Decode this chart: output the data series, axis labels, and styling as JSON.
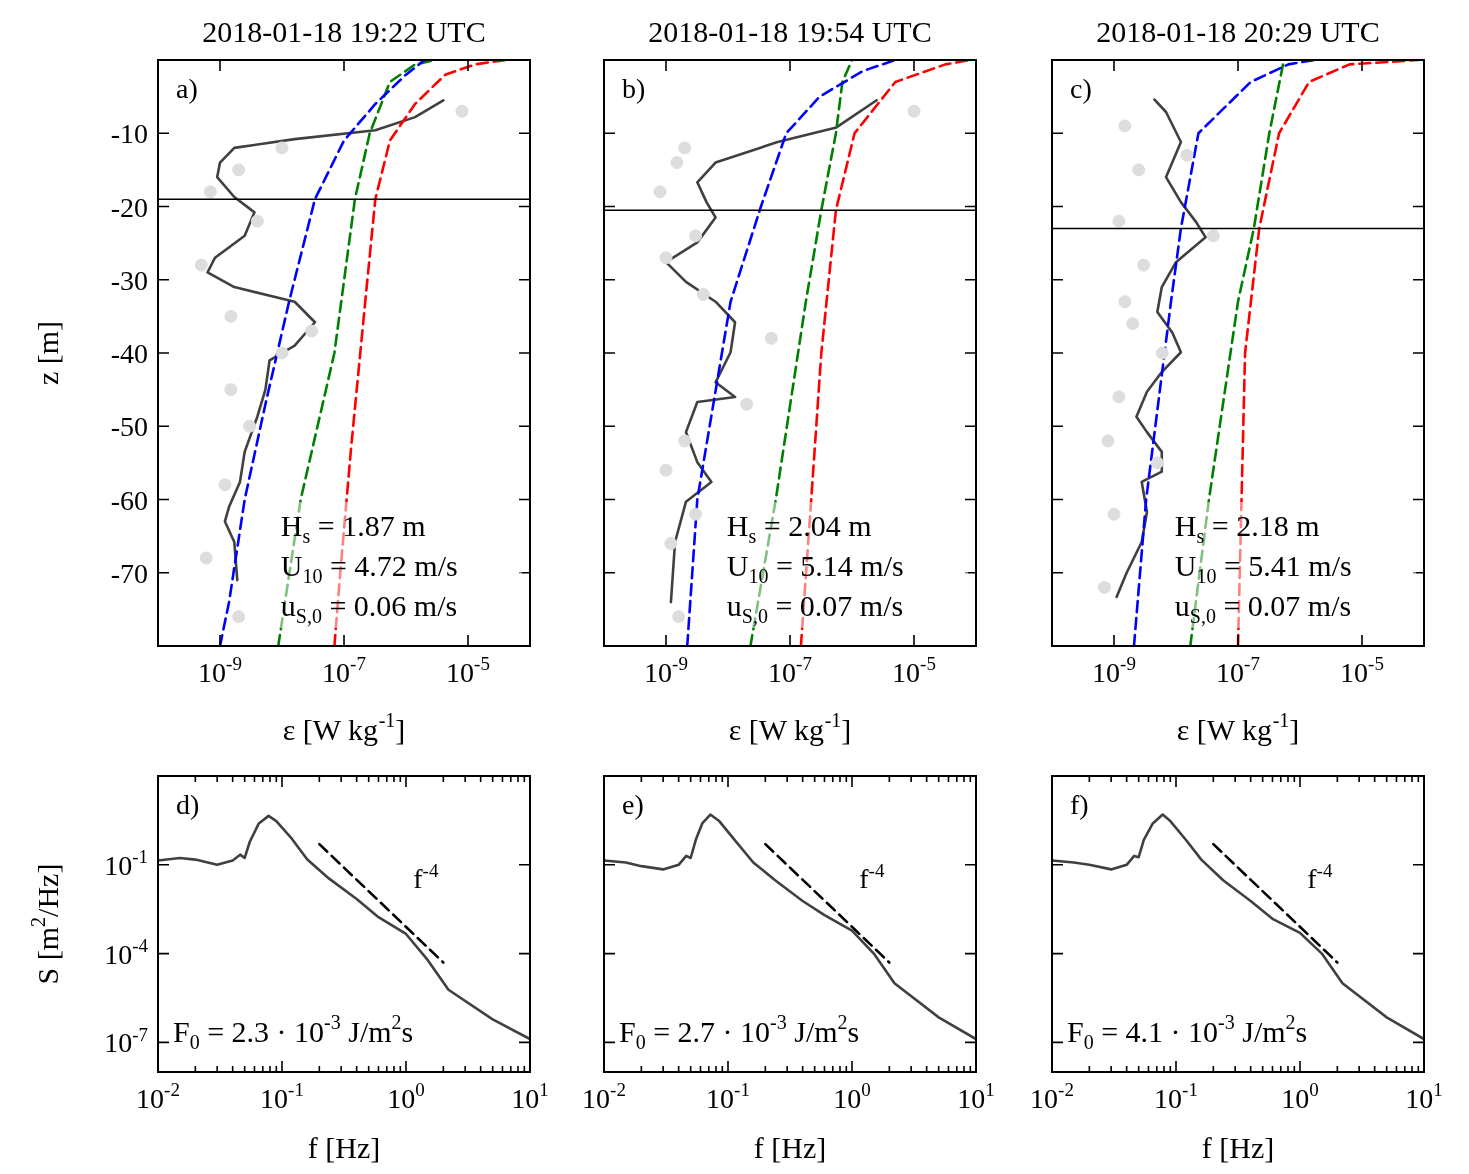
{
  "chart_data": [
    {
      "type": "line",
      "title": "2018-01-18 19:22 UTC",
      "xlabel": "ε [W kg$^{-1}$]",
      "ylabel": "z [m]",
      "log": "x",
      "xlim": [
        1e-10,
        0.0001
      ],
      "ylim": [
        -80,
        0
      ],
      "xticks": [
        {
          "value": 1e-09,
          "label": "10$^{-9}$"
        },
        {
          "value": 1e-07,
          "label": "10$^{-7}$"
        },
        {
          "value": 1e-05,
          "label": "10$^{-5}$"
        }
      ],
      "yticks": [
        -70,
        -60,
        -50,
        -40,
        -30,
        -20,
        -10
      ],
      "grid": false,
      "legend": false,
      "ref_lines": [
        {
          "axis": "y",
          "value": -19,
          "color": "#000000"
        }
      ],
      "annotations": [
        "a)",
        "H$_{s}$ = 1.87 m",
        "U$_{10}$ = 4.72 m/s",
        "u$_{S,0}$ = 0.06 m/s"
      ],
      "series": [
        {
          "type": "scatter",
          "color": "#dddddd",
          "marker": "circle",
          "x": [
            2e-09,
            7e-10,
            4e-09,
            5e-10,
            1.5e-09,
            1e-08,
            3e-09,
            1.2e-09,
            6e-10,
            2e-09,
            8e-06,
            1e-08,
            3e-08,
            1.5e-09
          ],
          "values": [
            -15,
            -18,
            -22,
            -28,
            -35,
            -40,
            -50,
            -58,
            -68,
            -76,
            -7,
            -12,
            -37,
            -45
          ]
        },
        {
          "type": "line",
          "color": "#0000ff",
          "line_style": "dashed",
          "x": [
            1e-09,
            1.4e-09,
            2.5e-09,
            5.4e-09,
            1.3e-08,
            3.4e-08,
            1e-07,
            3.2e-07,
            1e-06,
            2e-06
          ],
          "values": [
            -80,
            -74,
            -60,
            -47,
            -33,
            -19,
            -11,
            -6,
            -2,
            0
          ]
        },
        {
          "type": "line",
          "color": "#008000",
          "line_style": "dashed",
          "x": [
            8.7e-09,
            2e-08,
            7e-08,
            1.5e-07,
            2.6e-07,
            5.5e-07,
            1.4e-06,
            3e-06
          ],
          "values": [
            -80,
            -60,
            -40,
            -19,
            -10,
            -3,
            -0.6,
            0
          ]
        },
        {
          "type": "line",
          "color": "#ff0000",
          "line_style": "dashed",
          "x": [
            7e-08,
            8.7e-08,
            1.3e-07,
            2.2e-07,
            3.2e-07,
            5.5e-07,
            1.4e-06,
            4.3e-06,
            1.3e-05,
            4e-05
          ],
          "values": [
            -80,
            -70,
            -53,
            -33,
            -19,
            -11,
            -6,
            -2,
            -0.6,
            0
          ]
        },
        {
          "type": "line",
          "color": "#404040",
          "line_style": "solid",
          "x": [
            4e-06,
            1.4e-06,
            3.2e-07,
            1.6e-08,
            1.7e-09,
            1e-09,
            9e-10,
            1.7e-09,
            3.6e-09,
            2.5e-09,
            8.3e-10,
            6.3e-10,
            1.7e-09,
            1.6e-08,
            3.4e-08,
            1.6e-08,
            6.3e-09,
            5.4e-09,
            4e-09,
            2.5e-09,
            2.1e-09,
            1.4e-09,
            1.2e-09,
            1.7e-09,
            1.9e-09
          ],
          "values": [
            -5.5,
            -7.8,
            -9.6,
            -10.8,
            -12,
            -14,
            -16,
            -18.7,
            -20.8,
            -24,
            -27,
            -29,
            -31,
            -33,
            -35.8,
            -39,
            -41,
            -45,
            -48.7,
            -53.5,
            -57.6,
            -61,
            -63,
            -65.8,
            -71
          ]
        }
      ]
    },
    {
      "type": "line",
      "title": "2018-01-18 19:54 UTC",
      "xlabel": "ε [W kg$^{-1}$]",
      "log": "x",
      "xlim": [
        1e-10,
        0.0001
      ],
      "ylim": [
        -80,
        0
      ],
      "tick_labels": "x",
      "xticks": [
        {
          "value": 1e-09,
          "label": "10$^{-9}$"
        },
        {
          "value": 1e-07,
          "label": "10$^{-7}$"
        },
        {
          "value": 1e-05,
          "label": "10$^{-5}$"
        }
      ],
      "yticks": [
        -70,
        -60,
        -50,
        -40,
        -30,
        -20,
        -10
      ],
      "grid": false,
      "legend": false,
      "ref_lines": [
        {
          "axis": "y",
          "value": -20.5,
          "color": "#000000"
        }
      ],
      "annotations": [
        "b)",
        "H$_{s}$ = 2.04 m",
        "U$_{10}$ = 5.14 m/s",
        "u$_{S,0}$ = 0.07 m/s"
      ],
      "series": [
        {
          "type": "scatter",
          "color": "#dddddd",
          "marker": "circle",
          "x": [
            1.5e-09,
            8e-10,
            3e-09,
            1e-09,
            4e-09,
            2e-08,
            2e-09,
            1e-09,
            1.2e-09,
            1.6e-09,
            1e-05,
            2e-09,
            5e-08,
            3e-09
          ],
          "values": [
            -14,
            -18,
            -24,
            -27,
            -32,
            -47,
            -52,
            -56,
            -66,
            -76,
            -7,
            -12,
            -38,
            -62
          ]
        },
        {
          "type": "line",
          "color": "#0000ff",
          "line_style": "dashed",
          "x": [
            2.2e-09,
            3.2e-09,
            1.1e-08,
            3.4e-08,
            8.7e-08,
            3e-07,
            1.5e-06,
            5e-06
          ],
          "values": [
            -80,
            -60,
            -33,
            -20,
            -10,
            -5,
            -1.5,
            0
          ]
        },
        {
          "type": "line",
          "color": "#008000",
          "line_style": "dashed",
          "x": [
            2.3e-08,
            5.9e-08,
            1.8e-07,
            3.2e-07,
            5.5e-07,
            7e-07,
            1e-06
          ],
          "values": [
            -80,
            -60,
            -33,
            -20.5,
            -10,
            -3,
            0
          ]
        },
        {
          "type": "line",
          "color": "#ff0000",
          "line_style": "dashed",
          "x": [
            1.5e-07,
            2.2e-07,
            3.2e-07,
            5.5e-07,
            1.1e-06,
            5e-06,
            3.2e-05,
            8e-05
          ],
          "values": [
            -80,
            -60,
            -40,
            -20.5,
            -10,
            -3,
            -0.6,
            0
          ]
        },
        {
          "type": "line",
          "color": "#404040",
          "line_style": "solid",
          "x": [
            2.5e-06,
            5.6e-07,
            6.3e-08,
            6.3e-09,
            3.2e-09,
            4.5e-09,
            6.3e-09,
            3.2e-09,
            1e-09,
            2.1e-09,
            6.3e-09,
            1.3e-08,
            1.1e-08,
            6.3e-09,
            1.3e-08,
            3.2e-09,
            2.1e-09,
            3.2e-09,
            5.4e-09,
            2.1e-09,
            1.4e-09,
            1.2e-09
          ],
          "values": [
            -5.5,
            -9.2,
            -11.2,
            -14,
            -16.7,
            -19.4,
            -21.5,
            -24.9,
            -27.6,
            -30.3,
            -33,
            -35.8,
            -39.9,
            -44,
            -46,
            -46.7,
            -50.8,
            -54.9,
            -57.6,
            -60.3,
            -65.8,
            -74
          ]
        }
      ]
    },
    {
      "type": "line",
      "title": "2018-01-18 20:29 UTC",
      "xlabel": "ε [W kg$^{-1}$]",
      "log": "x",
      "xlim": [
        1e-10,
        0.0001
      ],
      "ylim": [
        -80,
        0
      ],
      "tick_labels": "x",
      "xticks": [
        {
          "value": 1e-09,
          "label": "10$^{-9}$"
        },
        {
          "value": 1e-07,
          "label": "10$^{-7}$"
        },
        {
          "value": 1e-05,
          "label": "10$^{-5}$"
        }
      ],
      "yticks": [
        -70,
        -60,
        -50,
        -40,
        -30,
        -20,
        -10
      ],
      "grid": false,
      "legend": false,
      "ref_lines": [
        {
          "axis": "y",
          "value": -23,
          "color": "#000000"
        }
      ],
      "annotations": [
        "c)",
        "H$_{s}$ = 2.18 m",
        "U$_{10}$ = 5.41 m/s",
        "u$_{S,0}$ = 0.07 m/s"
      ],
      "series": [
        {
          "type": "scatter",
          "color": "#dddddd",
          "marker": "circle",
          "x": [
            1.5e-09,
            2.5e-09,
            1.2e-09,
            3e-09,
            1.5e-09,
            6e-09,
            1.2e-09,
            8e-10,
            1e-09,
            7e-10,
            1.5e-08,
            2e-09,
            4e-08,
            5e-09
          ],
          "values": [
            -9,
            -15,
            -22,
            -28,
            -33,
            -40,
            -46,
            -52,
            -62,
            -72,
            -13,
            -36,
            -24,
            -55
          ]
        },
        {
          "type": "line",
          "color": "#0000ff",
          "line_style": "dashed",
          "x": [
            2.1e-09,
            3.3e-09,
            8.3e-09,
            1.2e-08,
            2.3e-08,
            1.6e-07,
            6.5e-07,
            1.7e-06
          ],
          "values": [
            -80,
            -60,
            -33,
            -23,
            -10,
            -3,
            -0.6,
            0
          ]
        },
        {
          "type": "line",
          "color": "#008000",
          "line_style": "dashed",
          "x": [
            1.7e-08,
            3.4e-08,
            1e-07,
            1.8e-07,
            3.2e-07,
            5.5e-07
          ],
          "values": [
            -80,
            -60,
            -33,
            -23,
            -10,
            0
          ]
        },
        {
          "type": "line",
          "color": "#ff0000",
          "line_style": "dashed",
          "x": [
            1e-07,
            1.3e-07,
            2.2e-07,
            4.6e-07,
            1.4e-06,
            6.3e-06,
            8e-05
          ],
          "values": [
            -80,
            -40,
            -23,
            -10,
            -3,
            -0.6,
            0
          ]
        },
        {
          "type": "line",
          "color": "#404040",
          "line_style": "solid",
          "x": [
            4.5e-09,
            6.9e-09,
            1.2e-08,
            6.9e-09,
            1.2e-08,
            2.1e-08,
            3e-08,
            1e-08,
            5.9e-09,
            5e-09,
            8.7e-09,
            1.2e-08,
            5.9e-09,
            3.4e-09,
            2.3e-09,
            3.4e-09,
            5.9e-09,
            5.9e-09,
            2.8e-09,
            3.4e-09,
            2.8e-09,
            1.6e-09,
            1.1e-09
          ],
          "values": [
            -5.4,
            -7.1,
            -11.2,
            -16,
            -19.4,
            -22.1,
            -24.2,
            -27.6,
            -31,
            -34.4,
            -37.2,
            -39.9,
            -42.6,
            -45.3,
            -48.7,
            -50.8,
            -53.5,
            -56.2,
            -57.6,
            -61.7,
            -65.8,
            -70,
            -73.3
          ]
        }
      ]
    },
    {
      "type": "line",
      "xlabel": "f [Hz]",
      "ylabel": "S [m$^{2}$/Hz]",
      "log": "xy",
      "xlim": [
        0.01,
        10
      ],
      "ylim": [
        1e-08,
        100
      ],
      "grid": false,
      "legend": false,
      "xticks": [
        {
          "value": 0.01,
          "label": "10$^{-2}$"
        },
        {
          "value": 0.02,
          "label": null
        },
        {
          "value": 0.03,
          "label": null
        },
        {
          "value": 0.04,
          "label": null
        },
        {
          "value": 0.05,
          "label": null
        },
        {
          "value": 0.06,
          "label": null
        },
        {
          "value": 0.07,
          "label": null
        },
        {
          "value": 0.08,
          "label": null
        },
        {
          "value": 0.09,
          "label": null
        },
        {
          "value": 0.1,
          "label": "10$^{-1}$"
        },
        {
          "value": 0.2,
          "label": null
        },
        {
          "value": 0.3,
          "label": null
        },
        {
          "value": 0.4,
          "label": null
        },
        {
          "value": 0.5,
          "label": null
        },
        {
          "value": 0.6,
          "label": null
        },
        {
          "value": 0.7,
          "label": null
        },
        {
          "value": 0.8,
          "label": null
        },
        {
          "value": 0.9,
          "label": null
        },
        {
          "value": 1,
          "label": "10$^{0}$"
        },
        {
          "value": 2,
          "label": null
        },
        {
          "value": 3,
          "label": null
        },
        {
          "value": 4,
          "label": null
        },
        {
          "value": 5,
          "label": null
        },
        {
          "value": 6,
          "label": null
        },
        {
          "value": 7,
          "label": null
        },
        {
          "value": 8,
          "label": null
        },
        {
          "value": 9,
          "label": null
        },
        {
          "value": 10,
          "label": "10$^{1}$"
        }
      ],
      "yticks": [
        {
          "value": 1e-07,
          "label": "10$^{-7}$"
        },
        {
          "value": 0.0001,
          "label": "10$^{-4}$"
        },
        {
          "value": 0.1,
          "label": "10$^{-1}$"
        }
      ],
      "annotations": [
        "d)",
        "F$_{0}$ = 2.3 · 10$^{-3}$ J/m$^{2}$s",
        "f$^{-4}$"
      ],
      "series": [
        {
          "type": "line",
          "color": "#000000",
          "line_style": "dashed",
          "x": [
            0.2,
            2
          ],
          "values": [
            0.5,
            5e-05
          ]
        },
        {
          "type": "line",
          "color": "#404040",
          "line_style": "solid",
          "x": [
            0.01,
            0.015,
            0.02,
            0.03,
            0.04,
            0.046,
            0.05,
            0.055,
            0.065,
            0.078,
            0.09,
            0.12,
            0.16,
            0.24,
            0.4,
            0.6,
            1,
            1.5,
            2.2,
            5,
            10
          ],
          "values": [
            0.14,
            0.17,
            0.15,
            0.1,
            0.14,
            0.22,
            0.17,
            0.6,
            2.5,
            4.5,
            3,
            0.76,
            0.15,
            0.034,
            0.007,
            0.0017,
            0.00046,
            6e-05,
            6e-06,
            6e-07,
            1.3e-07
          ]
        }
      ]
    },
    {
      "type": "line",
      "xlabel": "f [Hz]",
      "log": "xy",
      "xlim": [
        0.01,
        10
      ],
      "ylim": [
        1e-08,
        100
      ],
      "grid": false,
      "legend": false,
      "tick_labels": "x",
      "xticks": [
        {
          "value": 0.01,
          "label": "10$^{-2}$"
        },
        {
          "value": 0.02,
          "label": null
        },
        {
          "value": 0.03,
          "label": null
        },
        {
          "value": 0.04,
          "label": null
        },
        {
          "value": 0.05,
          "label": null
        },
        {
          "value": 0.06,
          "label": null
        },
        {
          "value": 0.07,
          "label": null
        },
        {
          "value": 0.08,
          "label": null
        },
        {
          "value": 0.09,
          "label": null
        },
        {
          "value": 0.1,
          "label": "10$^{-1}$"
        },
        {
          "value": 0.2,
          "label": null
        },
        {
          "value": 0.3,
          "label": null
        },
        {
          "value": 0.4,
          "label": null
        },
        {
          "value": 0.5,
          "label": null
        },
        {
          "value": 0.6,
          "label": null
        },
        {
          "value": 0.7,
          "label": null
        },
        {
          "value": 0.8,
          "label": null
        },
        {
          "value": 0.9,
          "label": null
        },
        {
          "value": 1,
          "label": "10$^{0}$"
        },
        {
          "value": 2,
          "label": null
        },
        {
          "value": 3,
          "label": null
        },
        {
          "value": 4,
          "label": null
        },
        {
          "value": 5,
          "label": null
        },
        {
          "value": 6,
          "label": null
        },
        {
          "value": 7,
          "label": null
        },
        {
          "value": 8,
          "label": null
        },
        {
          "value": 9,
          "label": null
        },
        {
          "value": 10,
          "label": "10$^{1}$"
        }
      ],
      "yticks": [
        {
          "value": 1e-07,
          "label": null
        },
        {
          "value": 0.0001,
          "label": null
        },
        {
          "value": 0.1,
          "label": null
        }
      ],
      "annotations": [
        "e)",
        "F$_{0}$ = 2.7 · 10$^{-3}$ J/m$^{2}$s",
        "f$^{-4}$"
      ],
      "series": [
        {
          "type": "line",
          "color": "#000000",
          "line_style": "dashed",
          "x": [
            0.2,
            2
          ],
          "values": [
            0.5,
            5e-05
          ]
        },
        {
          "type": "line",
          "color": "#404040",
          "line_style": "solid",
          "x": [
            0.01,
            0.015,
            0.02,
            0.03,
            0.04,
            0.046,
            0.05,
            0.055,
            0.062,
            0.072,
            0.085,
            0.11,
            0.16,
            0.24,
            0.4,
            0.6,
            1,
            1.5,
            2.2,
            5,
            10
          ],
          "values": [
            0.14,
            0.12,
            0.09,
            0.07,
            0.1,
            0.2,
            0.17,
            0.7,
            2.5,
            5,
            3,
            0.8,
            0.12,
            0.03,
            0.006,
            0.002,
            0.0006,
            0.0001,
            1e-05,
            7e-07,
            1.3e-07
          ]
        }
      ]
    },
    {
      "type": "line",
      "xlabel": "f [Hz]",
      "log": "xy",
      "xlim": [
        0.01,
        10
      ],
      "ylim": [
        1e-08,
        100
      ],
      "grid": false,
      "legend": false,
      "tick_labels": "x",
      "xticks": [
        {
          "value": 0.01,
          "label": "10$^{-2}$"
        },
        {
          "value": 0.02,
          "label": null
        },
        {
          "value": 0.03,
          "label": null
        },
        {
          "value": 0.04,
          "label": null
        },
        {
          "value": 0.05,
          "label": null
        },
        {
          "value": 0.06,
          "label": null
        },
        {
          "value": 0.07,
          "label": null
        },
        {
          "value": 0.08,
          "label": null
        },
        {
          "value": 0.09,
          "label": null
        },
        {
          "value": 0.1,
          "label": "10$^{-1}$"
        },
        {
          "value": 0.2,
          "label": null
        },
        {
          "value": 0.3,
          "label": null
        },
        {
          "value": 0.4,
          "label": null
        },
        {
          "value": 0.5,
          "label": null
        },
        {
          "value": 0.6,
          "label": null
        },
        {
          "value": 0.7,
          "label": null
        },
        {
          "value": 0.8,
          "label": null
        },
        {
          "value": 0.9,
          "label": null
        },
        {
          "value": 1,
          "label": "10$^{0}$"
        },
        {
          "value": 2,
          "label": null
        },
        {
          "value": 3,
          "label": null
        },
        {
          "value": 4,
          "label": null
        },
        {
          "value": 5,
          "label": null
        },
        {
          "value": 6,
          "label": null
        },
        {
          "value": 7,
          "label": null
        },
        {
          "value": 8,
          "label": null
        },
        {
          "value": 9,
          "label": null
        },
        {
          "value": 10,
          "label": "10$^{1}$"
        }
      ],
      "yticks": [
        {
          "value": 1e-07,
          "label": null
        },
        {
          "value": 0.0001,
          "label": null
        },
        {
          "value": 0.1,
          "label": null
        }
      ],
      "annotations": [
        "f)",
        "F$_{0}$ = 4.1 · 10$^{-3}$ J/m$^{2}$s",
        "f$^{-4}$"
      ],
      "series": [
        {
          "type": "line",
          "color": "#000000",
          "line_style": "dashed",
          "x": [
            0.2,
            2
          ],
          "values": [
            0.5,
            5e-05
          ]
        },
        {
          "type": "line",
          "color": "#404040",
          "line_style": "solid",
          "x": [
            0.01,
            0.015,
            0.02,
            0.03,
            0.04,
            0.046,
            0.05,
            0.055,
            0.065,
            0.078,
            0.09,
            0.12,
            0.16,
            0.24,
            0.4,
            0.6,
            1,
            1.5,
            2.2,
            5,
            10
          ],
          "values": [
            0.14,
            0.12,
            0.1,
            0.07,
            0.1,
            0.2,
            0.18,
            0.7,
            2.5,
            5,
            3,
            0.7,
            0.15,
            0.03,
            0.006,
            0.0015,
            0.0005,
            0.0001,
            1e-05,
            7e-07,
            1.3e-07
          ]
        }
      ]
    }
  ]
}
